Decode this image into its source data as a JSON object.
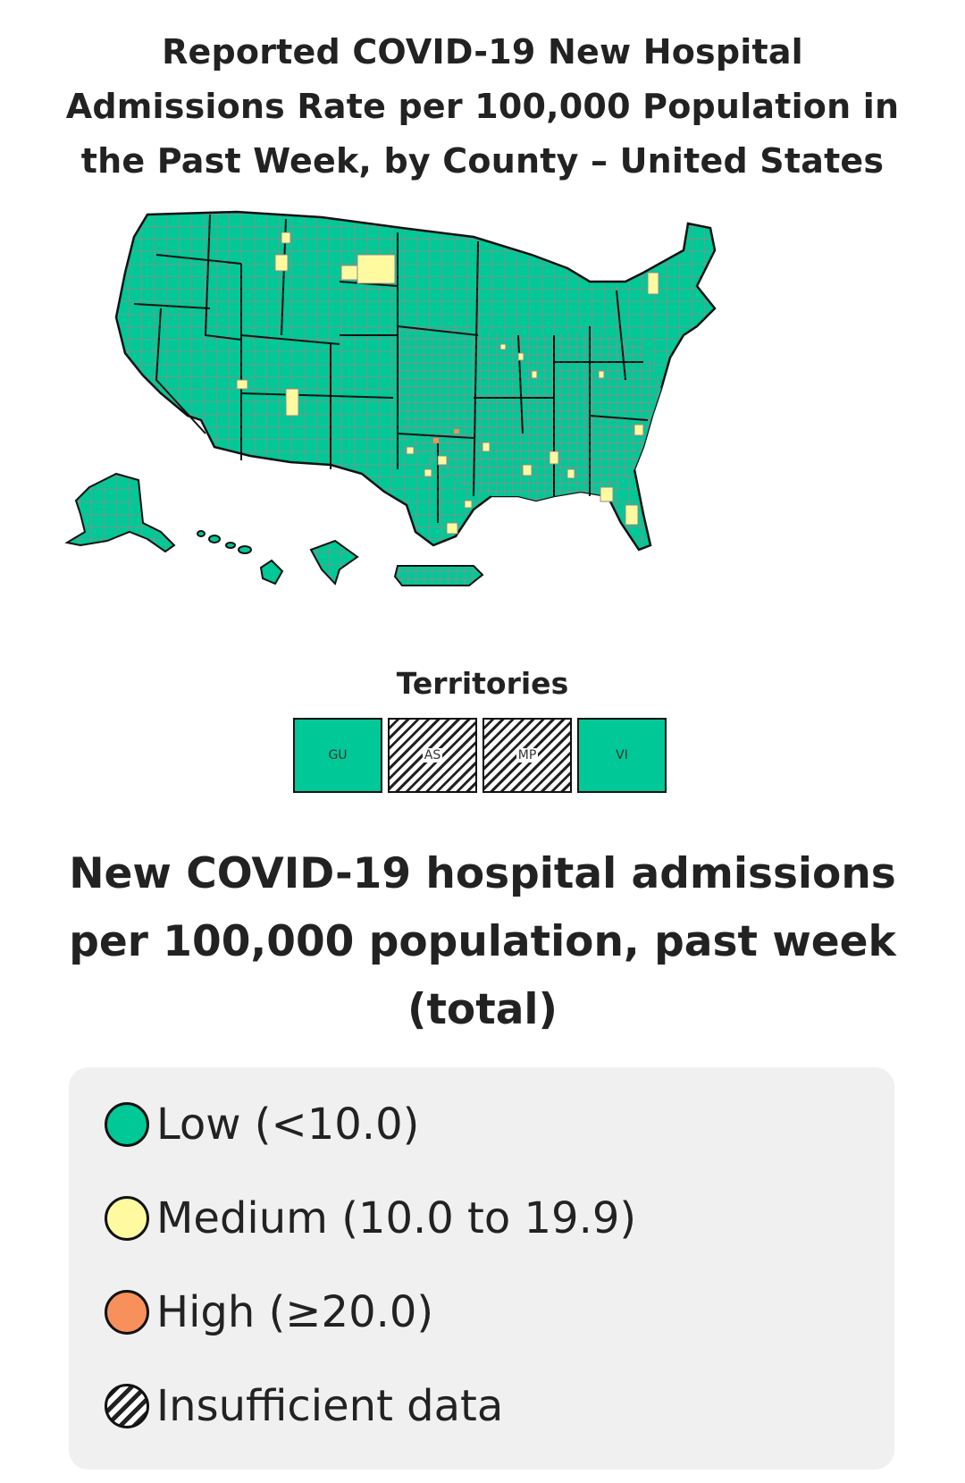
{
  "map": {
    "title": "Reported COVID-19 New Hospital Admissions Rate per 100,000 Population in the Past Week, by County – United States",
    "colors": {
      "low": "#00c896",
      "medium": "#fffaa0",
      "high": "#f7905a",
      "county_line": "#8c8c8c",
      "state_line": "#111111"
    }
  },
  "territories": {
    "title": "Territories",
    "items": [
      {
        "code": "GU",
        "level": "low"
      },
      {
        "code": "AS",
        "level": "insufficient"
      },
      {
        "code": "MP",
        "level": "insufficient"
      },
      {
        "code": "VI",
        "level": "low"
      }
    ]
  },
  "legend": {
    "title": "New COVID-19 hospital admissions per 100,000 population, past week (total)",
    "items": [
      {
        "label": "Low (<10.0)",
        "color": "#00c896"
      },
      {
        "label": "Medium (10.0 to 19.9)",
        "color": "#fffaa0"
      },
      {
        "label": "High (≥20.0)",
        "color": "#f7905a"
      },
      {
        "label": "Insufficient data",
        "color": "hatch"
      }
    ]
  }
}
